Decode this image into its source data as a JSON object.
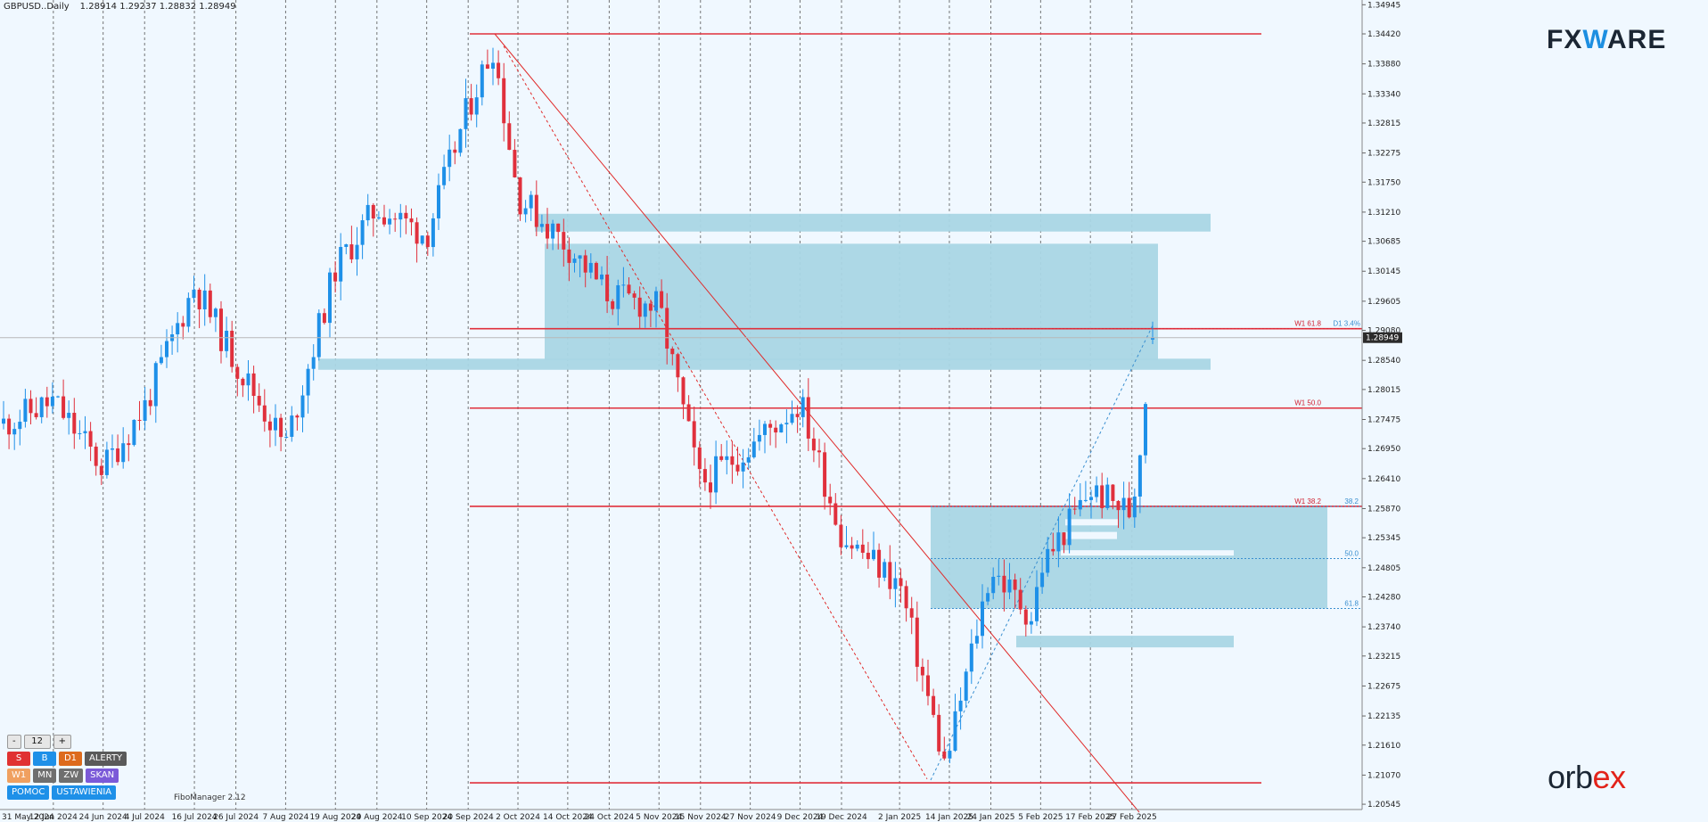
{
  "header": {
    "symbol": "GBPUSD..Daily",
    "ohlc": "1.28914 1.29237 1.28832 1.28949"
  },
  "footer_label": "FiboManager 2.12",
  "brand_top": {
    "left": "FX",
    "mid": "W",
    "right": "ARE"
  },
  "brand_bottom": {
    "left": "orb",
    "right": "ex"
  },
  "price_axis": {
    "labels": [
      "1.34945",
      "1.34420",
      "1.33880",
      "1.33340",
      "1.32815",
      "1.32275",
      "1.31750",
      "1.31210",
      "1.30685",
      "1.30145",
      "1.29605",
      "1.29080",
      "1.28540",
      "1.28015",
      "1.27475",
      "1.26950",
      "1.26410",
      "1.25870",
      "1.25345",
      "1.24805",
      "1.24280",
      "1.23740",
      "1.23215",
      "1.22675",
      "1.22135",
      "1.21610",
      "1.21070",
      "1.20545"
    ],
    "current_price": "1.28949"
  },
  "date_axis": {
    "labels": [
      "31 May 2024",
      "12 Jun 2024",
      "24 Jun 2024",
      "4 Jul 2024",
      "16 Jul 2024",
      "26 Jul 2024",
      "7 Aug 2024",
      "19 Aug 2024",
      "29 Aug 2024",
      "10 Sep 2024",
      "20 Sep 2024",
      "2 Oct 2024",
      "14 Oct 2024",
      "24 Oct 2024",
      "5 Nov 2024",
      "15 Nov 2024",
      "27 Nov 2024",
      "9 Dec 2024",
      "19 Dec 2024",
      "2 Jan 2025",
      "14 Jan 2025",
      "24 Jan 2025",
      "5 Feb 2025",
      "17 Feb 2025",
      "27 Feb 2025"
    ]
  },
  "level_labels": {
    "w1_618": "W1 61.8",
    "d1_34": "D1 3.4%",
    "w1_50": "W1 50.0",
    "w1_382": "W1 38.2",
    "fib_382": "38.2",
    "fib_50": "50.0",
    "fib_618": "61.8"
  },
  "panel": {
    "minus": "-",
    "count": "12",
    "plus": "+",
    "s": "S",
    "b": "B",
    "d1": "D1",
    "alerty": "ALERTY",
    "w1": "W1",
    "mn": "MN",
    "zw": "ZW",
    "skan": "SKAN",
    "pomoc": "POMOC",
    "ustawienia": "USTAWIENIA"
  },
  "colors": {
    "background": "#f0f8ff",
    "bull": "#1e90e8",
    "bear": "#e0303c",
    "zone": "#a9d6e5",
    "level": "#e0303c"
  },
  "chart_data": {
    "type": "candlestick",
    "symbol": "GBPUSD",
    "timeframe": "Daily",
    "ylim": [
      1.2045,
      1.3495
    ],
    "x_range": [
      "31 May 2024",
      "4 Mar 2025"
    ],
    "last": {
      "open": 1.28914,
      "high": 1.29237,
      "low": 1.28832,
      "close": 1.28949
    },
    "horizontal_levels": [
      1.3442,
      1.2911,
      1.2768,
      1.2591,
      1.2093
    ],
    "zones": [
      {
        "from": 1.3086,
        "to": 1.3118
      },
      {
        "from": 1.2854,
        "to": 1.3064
      },
      {
        "from": 1.2837,
        "to": 1.2857
      },
      {
        "from": 1.2407,
        "to": 1.2592
      },
      {
        "from": 1.2337,
        "to": 1.2358
      }
    ],
    "close_path": [
      [
        "31 May 2024",
        1.274
      ],
      [
        "12 Jun 2024",
        1.278
      ],
      [
        "24 Jun 2024",
        1.266
      ],
      [
        "4 Jul 2024",
        1.277
      ],
      [
        "16 Jul 2024",
        1.299
      ],
      [
        "26 Jul 2024",
        1.285
      ],
      [
        "7 Aug 2024",
        1.27
      ],
      [
        "19 Aug 2024",
        1.302
      ],
      [
        "29 Aug 2024",
        1.313
      ],
      [
        "10 Sep 2024",
        1.308
      ],
      [
        "20 Sep 2024",
        1.331
      ],
      [
        "26 Sep 2024",
        1.342
      ],
      [
        "2 Oct 2024",
        1.315
      ],
      [
        "14 Oct 2024",
        1.306
      ],
      [
        "24 Oct 2024",
        1.297
      ],
      [
        "5 Nov 2024",
        1.295
      ],
      [
        "15 Nov 2024",
        1.263
      ],
      [
        "27 Nov 2024",
        1.27
      ],
      [
        "9 Dec 2024",
        1.278
      ],
      [
        "19 Dec 2024",
        1.254
      ],
      [
        "2 Jan 2025",
        1.245
      ],
      [
        "13 Jan 2025",
        1.212
      ],
      [
        "24 Jan 2025",
        1.248
      ],
      [
        "3 Feb 2025",
        1.239
      ],
      [
        "5 Feb 2025",
        1.248
      ],
      [
        "17 Feb 2025",
        1.262
      ],
      [
        "27 Feb 2025",
        1.258
      ],
      [
        "4 Mar 2025",
        1.2895
      ]
    ]
  }
}
